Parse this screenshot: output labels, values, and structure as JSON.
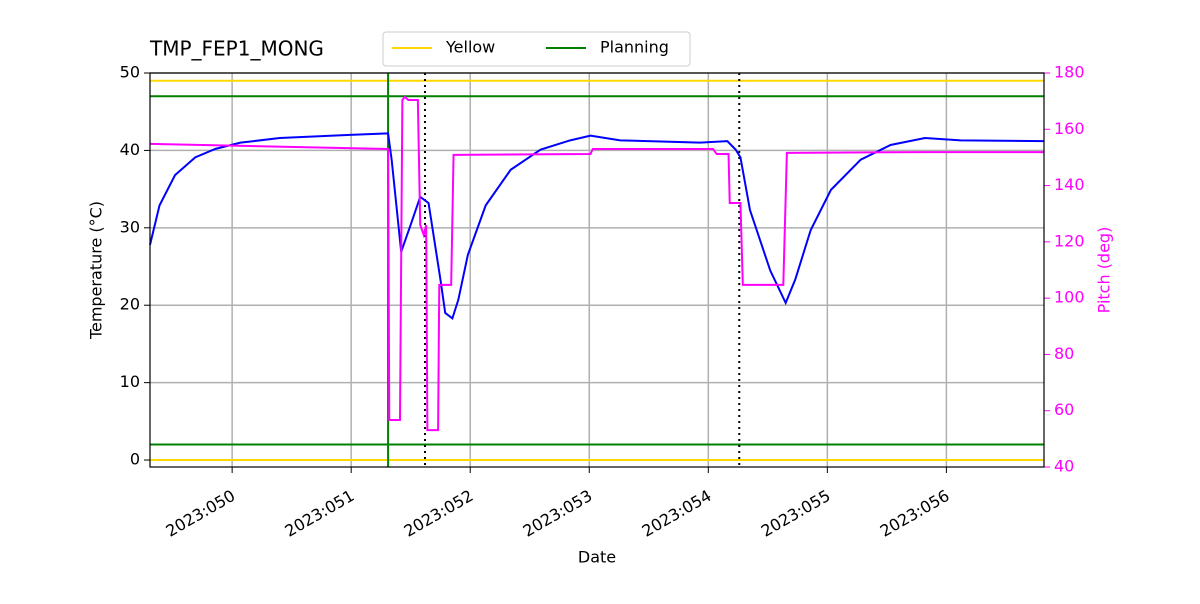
{
  "chart_data": {
    "type": "line",
    "title": "TMP_FEP1_MONG",
    "x_label": "Date",
    "y_label": "Temperature (°C)",
    "y2_label": "Pitch (deg)",
    "xlim": [
      49.31,
      56.82
    ],
    "xticks": [
      {
        "value": 50,
        "label": "2023:050"
      },
      {
        "value": 51,
        "label": "2023:051"
      },
      {
        "value": 52,
        "label": "2023:052"
      },
      {
        "value": 53,
        "label": "2023:053"
      },
      {
        "value": 54,
        "label": "2023:054"
      },
      {
        "value": 55,
        "label": "2023:055"
      },
      {
        "value": 56,
        "label": "2023:056"
      }
    ],
    "ylim": [
      -0.9,
      50
    ],
    "yticks": [
      0,
      10,
      20,
      30,
      40,
      50
    ],
    "y2lim": [
      40,
      180
    ],
    "y2ticks": [
      40,
      60,
      80,
      100,
      120,
      140,
      160,
      180
    ],
    "y2_color": "#ff00ff",
    "grid": true,
    "legend": "top",
    "series": [
      {
        "color": "#0000ff",
        "x": [
          49.31,
          49.39,
          49.52,
          49.69,
          49.86,
          50.07,
          50.4,
          50.99,
          51.31,
          51.34,
          51.42,
          51.5,
          51.58,
          51.65,
          51.75,
          51.79,
          51.85,
          51.9,
          51.98,
          52.13,
          52.34,
          52.59,
          52.84,
          53.01,
          53.26,
          53.93,
          54.16,
          54.23,
          54.27,
          54.35,
          54.52,
          54.65,
          54.73,
          54.86,
          55.03,
          55.28,
          55.53,
          55.82,
          56.12,
          56.82
        ],
        "values": [
          27.8,
          32.9,
          36.8,
          39.1,
          40.2,
          41.0,
          41.6,
          42.0,
          42.2,
          38.8,
          26.9,
          30.4,
          34.0,
          33.2,
          23.3,
          19.0,
          18.3,
          20.7,
          26.5,
          32.9,
          37.5,
          40.1,
          41.3,
          41.9,
          41.3,
          41.0,
          41.2,
          40.1,
          39.1,
          32.3,
          24.5,
          20.3,
          23.3,
          29.7,
          34.9,
          38.8,
          40.7,
          41.6,
          41.3,
          41.2
        ]
      },
      {
        "color": "#ff00ff",
        "axis": "y2",
        "x": [
          49.31,
          51.31,
          51.32,
          51.41,
          51.43,
          51.45,
          51.48,
          51.56,
          51.58,
          51.61,
          51.63,
          51.64,
          51.73,
          51.74,
          51.84,
          51.86,
          53.01,
          53.03,
          54.04,
          54.07,
          54.17,
          54.18,
          54.27,
          54.29,
          54.63,
          54.66,
          55.82,
          56.82
        ],
        "values": [
          154.8,
          153.0,
          56.7,
          56.7,
          170.4,
          171.5,
          170.4,
          170.4,
          126.0,
          122.4,
          126.0,
          53.1,
          53.1,
          104.7,
          104.7,
          150.9,
          151.2,
          153.0,
          153.0,
          151.2,
          151.2,
          133.8,
          133.8,
          104.7,
          104.7,
          151.6,
          151.9,
          151.9
        ]
      }
    ],
    "limit_lines": [
      {
        "name": "Yellow",
        "color": "#ffd700",
        "values": [
          0,
          49
        ]
      },
      {
        "name": "Planning",
        "color": "#008000",
        "values": [
          2,
          47
        ]
      }
    ],
    "vlines": [
      {
        "color": "#008000",
        "x": 51.31
      },
      {
        "color": "#000000",
        "style": "dotted",
        "x": 51.62
      },
      {
        "color": "#000000",
        "style": "dotted",
        "x": 54.26
      }
    ]
  }
}
